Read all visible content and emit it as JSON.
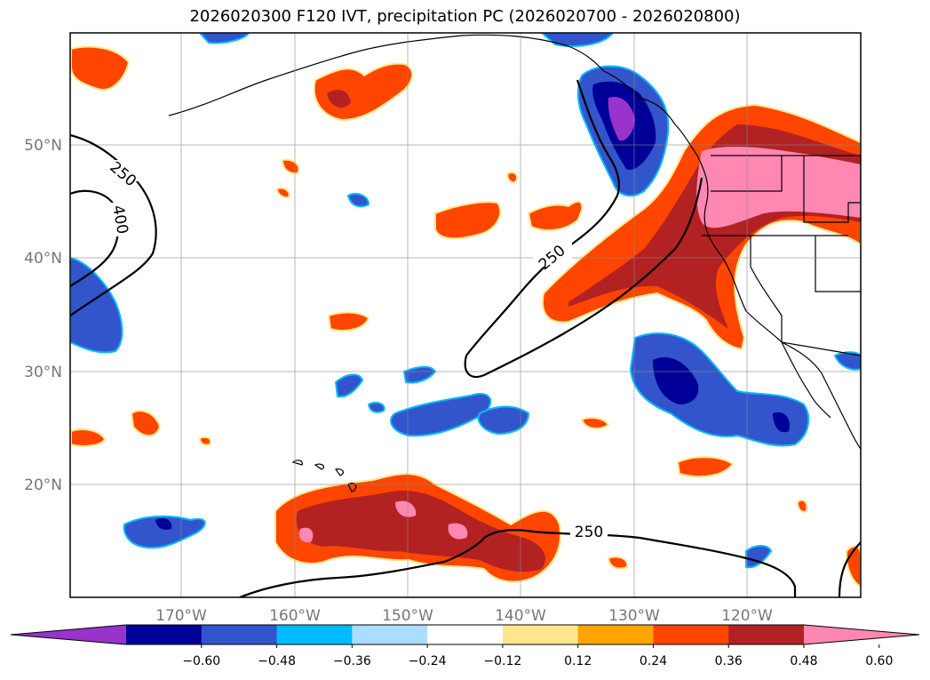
{
  "title": "2026020300 F120 IVT, precipitation PC (2026020700 - 2026020800)",
  "map": {
    "lon_labels": [
      "170°W",
      "160°W",
      "150°W",
      "140°W",
      "130°W",
      "120°W"
    ],
    "lat_labels": [
      "50°N",
      "40°N",
      "30°N",
      "20°N"
    ],
    "ivt_contour_labels": [
      "250",
      "400",
      "250",
      "250"
    ]
  },
  "colorbar": {
    "colors": [
      "#9933cc",
      "#000099",
      "#3355cc",
      "#00bbff",
      "#aaddff",
      "#ffffff",
      "#ffe68c",
      "#ffa500",
      "#ff4500",
      "#b22222",
      "#ff88b2"
    ],
    "tick_labels": [
      "−0.60",
      "−0.48",
      "−0.36",
      "−0.24",
      "−0.12",
      "0.12",
      "0.24",
      "0.36",
      "0.48",
      "0.60"
    ]
  }
}
